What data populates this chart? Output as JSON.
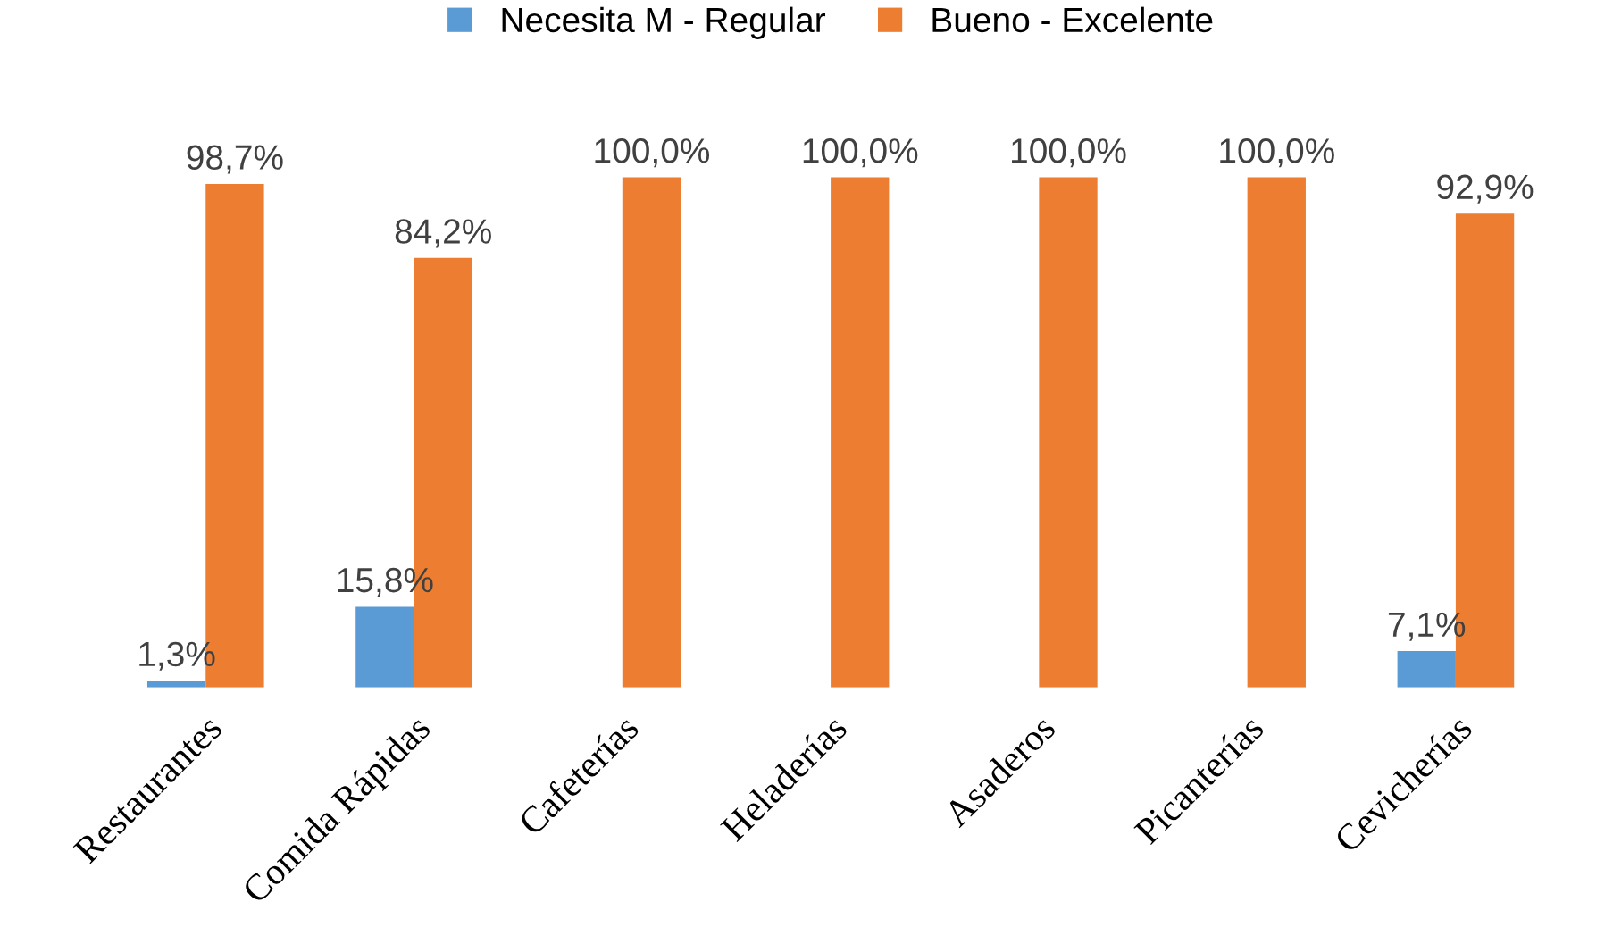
{
  "chart_data": {
    "type": "bar",
    "categories": [
      "Restaurantes",
      "Comida Rápidas",
      "Cafeterías",
      "Heladerías",
      "Asaderos",
      "Picanterías",
      "Cevicherías"
    ],
    "series": [
      {
        "name": "Necesita M - Regular",
        "color": "#5b9bd5",
        "values": [
          1.3,
          15.8,
          0,
          0,
          0,
          0,
          7.1
        ],
        "value_labels": [
          "1,3%",
          "15,8%",
          null,
          null,
          null,
          null,
          "7,1%"
        ]
      },
      {
        "name": "Bueno - Excelente",
        "color": "#ed7d31",
        "values": [
          98.7,
          84.2,
          100,
          100,
          100,
          100,
          92.9
        ],
        "value_labels": [
          "98,7%",
          "84,2%",
          "100,0%",
          "100,0%",
          "100,0%",
          "100,0%",
          "92,9%"
        ]
      }
    ],
    "legend": "top"
  }
}
